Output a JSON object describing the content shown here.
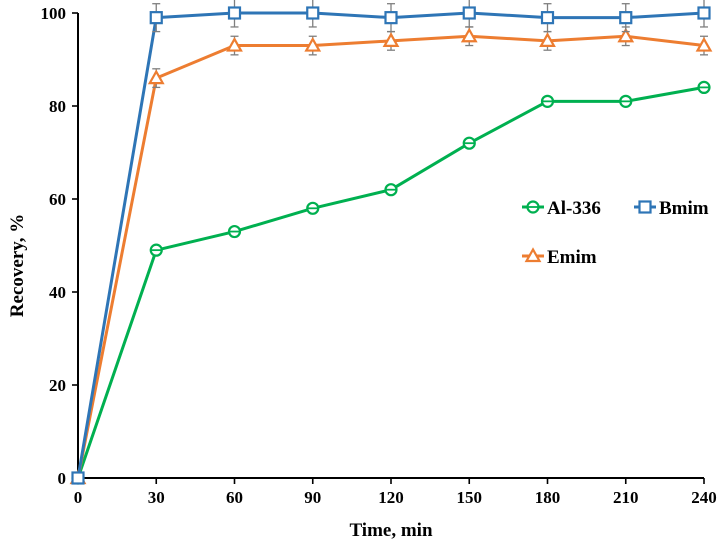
{
  "chart_data": {
    "type": "line",
    "xlabel": "Time, min",
    "ylabel": "Recovery, %",
    "x": [
      0,
      30,
      60,
      90,
      120,
      150,
      180,
      210,
      240
    ],
    "xlim": [
      0,
      240
    ],
    "ylim": [
      0,
      100
    ],
    "xticks": [
      0,
      30,
      60,
      90,
      120,
      150,
      180,
      210,
      240
    ],
    "yticks": [
      0,
      20,
      40,
      60,
      80,
      100
    ],
    "grid": false,
    "legend_position": "right-middle",
    "series": [
      {
        "name": "Al-336",
        "color": "#00b050",
        "marker": "circle",
        "values": [
          0,
          49,
          53,
          58,
          62,
          72,
          81,
          81,
          84
        ],
        "errors": [
          0,
          0,
          0,
          0,
          0,
          0,
          0,
          0,
          0
        ]
      },
      {
        "name": "Bmim",
        "color": "#2e75b6",
        "marker": "square",
        "values": [
          0,
          99,
          100,
          100,
          99,
          100,
          99,
          99,
          100
        ],
        "errors": [
          0,
          3,
          3,
          3,
          3,
          3,
          3,
          3,
          3
        ]
      },
      {
        "name": "Emim",
        "color": "#ed7d31",
        "marker": "triangle",
        "values": [
          0,
          86,
          93,
          93,
          94,
          95,
          94,
          95,
          93
        ],
        "errors": [
          0,
          2,
          2,
          2,
          2,
          2,
          2,
          2,
          2
        ]
      }
    ]
  }
}
